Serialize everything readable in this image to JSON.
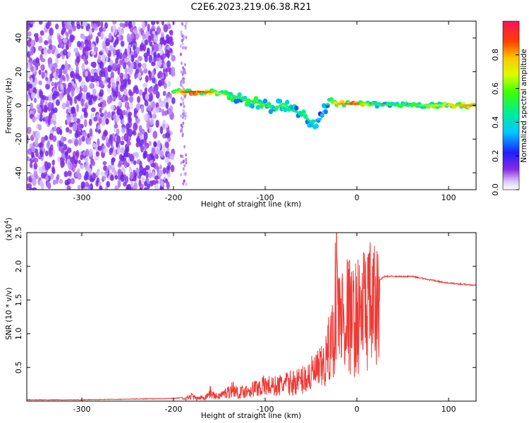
{
  "figure": {
    "title": "C2E6.2023.219.06.38.R21"
  },
  "chart_data": [
    {
      "type": "heatmap",
      "xlabel": "Height of straight line (km)",
      "ylabel": "Frequency (Hz)",
      "xlim": [
        -360,
        130
      ],
      "ylim": [
        -50,
        50
      ],
      "xticks": [
        -300,
        -200,
        -100,
        0,
        100
      ],
      "yticks": [
        -40,
        -20,
        0,
        20,
        40
      ],
      "grid": false,
      "description_points": [
        {
          "x": -340,
          "y": 30,
          "v": 0.15
        },
        {
          "x": -300,
          "y": -10,
          "v": 0.15
        },
        {
          "x": -250,
          "y": 20,
          "v": 0.15
        },
        {
          "x": -210,
          "y": -35,
          "v": 0.12
        }
      ],
      "ridge": [
        {
          "x": -200,
          "y": 8,
          "v": 0.55
        },
        {
          "x": -190,
          "y": 8,
          "v": 0.85
        },
        {
          "x": -175,
          "y": 8,
          "v": 0.9
        },
        {
          "x": -160,
          "y": 8,
          "v": 0.85
        },
        {
          "x": -145,
          "y": 7,
          "v": 0.6
        },
        {
          "x": -130,
          "y": 5,
          "v": 0.5
        },
        {
          "x": -120,
          "y": 3,
          "v": 0.55
        },
        {
          "x": -110,
          "y": 2,
          "v": 0.55
        },
        {
          "x": -100,
          "y": 0,
          "v": 0.6
        },
        {
          "x": -90,
          "y": -2,
          "v": 0.5
        },
        {
          "x": -80,
          "y": 1,
          "v": 0.55
        },
        {
          "x": -70,
          "y": -3,
          "v": 0.45
        },
        {
          "x": -60,
          "y": -5,
          "v": 0.5
        },
        {
          "x": -50,
          "y": -10,
          "v": 0.45
        },
        {
          "x": -40,
          "y": -8,
          "v": 0.35
        },
        {
          "x": -30,
          "y": 3,
          "v": 0.5
        },
        {
          "x": -20,
          "y": 1,
          "v": 0.8
        },
        {
          "x": -10,
          "y": 1,
          "v": 0.85
        },
        {
          "x": 0,
          "y": 1,
          "v": 0.9
        },
        {
          "x": 20,
          "y": 0.5,
          "v": 0.5
        },
        {
          "x": 60,
          "y": 0,
          "v": 0.55
        },
        {
          "x": 100,
          "y": 0,
          "v": 0.75
        },
        {
          "x": 130,
          "y": 0,
          "v": 0.85
        }
      ],
      "colorbar": {
        "label": "Normalized spectral amplitude",
        "ticks": [
          "0.0",
          "0.2",
          "0.4",
          "0.6",
          "0.8"
        ],
        "range": [
          0,
          1
        ]
      }
    },
    {
      "type": "line",
      "xlabel": "Height of straight line (km)",
      "ylabel": "SNR (10 * v/v)",
      "y_multiplier_label": "(x10",
      "y_multiplier_exp": "4",
      "y_multiplier_close": ")",
      "xlim": [
        -360,
        130
      ],
      "ylim": [
        0,
        2.5
      ],
      "xticks": [
        -300,
        -200,
        -100,
        0,
        100
      ],
      "yticks": [
        "0.5",
        "1.0",
        "1.5",
        "2.0",
        "2.5"
      ],
      "grid": false,
      "series": [
        {
          "color": "#ee3a35",
          "points": [
            [
              -360,
              0.02
            ],
            [
              -300,
              0.02
            ],
            [
              -250,
              0.03
            ],
            [
              -200,
              0.04
            ],
            [
              -185,
              0.06
            ],
            [
              -180,
              0.1
            ],
            [
              -175,
              0.05
            ],
            [
              -165,
              0.08
            ],
            [
              -160,
              0.17
            ],
            [
              -155,
              0.09
            ],
            [
              -150,
              0.1
            ],
            [
              -140,
              0.18
            ],
            [
              -135,
              0.24
            ],
            [
              -130,
              0.15
            ],
            [
              -120,
              0.2
            ],
            [
              -110,
              0.25
            ],
            [
              -100,
              0.3
            ],
            [
              -90,
              0.28
            ],
            [
              -80,
              0.32
            ],
            [
              -70,
              0.35
            ],
            [
              -60,
              0.4
            ],
            [
              -50,
              0.5
            ],
            [
              -40,
              0.6
            ],
            [
              -35,
              0.7
            ],
            [
              -30,
              1.0
            ],
            [
              -25,
              1.3
            ],
            [
              -22,
              2.5
            ],
            [
              -20,
              1.6
            ],
            [
              -15,
              1.6
            ],
            [
              -10,
              1.7
            ],
            [
              -5,
              1.5
            ],
            [
              0,
              1.6
            ],
            [
              10,
              1.8
            ],
            [
              20,
              1.75
            ],
            [
              30,
              1.85
            ],
            [
              40,
              1.85
            ],
            [
              60,
              1.85
            ],
            [
              80,
              1.8
            ],
            [
              95,
              1.76
            ],
            [
              110,
              1.74
            ],
            [
              130,
              1.72
            ]
          ]
        }
      ]
    }
  ]
}
